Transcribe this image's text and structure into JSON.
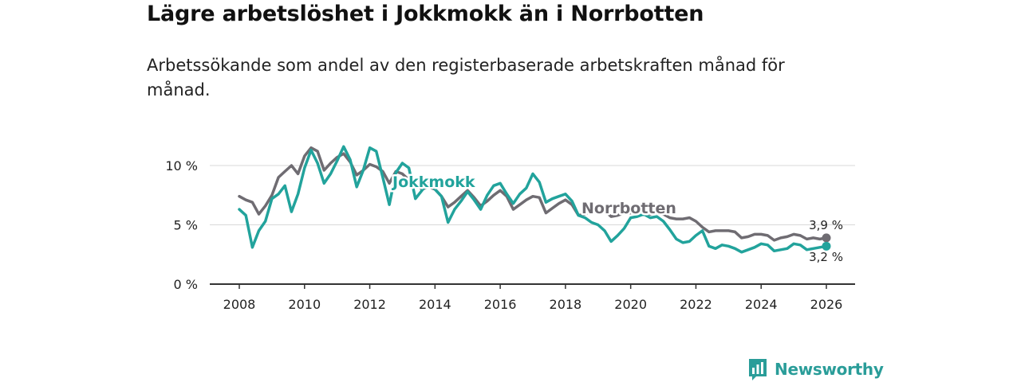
{
  "header": {
    "title": "Lägre arbetslöshet i Jokkmokk än i Norrbotten",
    "subtitle": "Arbetssökande som andel av den registerbaserade arbetskraften månad för månad."
  },
  "brand": {
    "name": "Newsworthy",
    "icon": "bar-chart-icon",
    "color": "#2a9d99"
  },
  "chart_data": {
    "type": "line",
    "title": "Lägre arbetslöshet i Jokkmokk än i Norrbotten",
    "xlabel": "",
    "ylabel": "",
    "xlim": [
      2007.4,
      2026.9
    ],
    "ylim": [
      0,
      12
    ],
    "x_ticks": [
      2008,
      2010,
      2012,
      2014,
      2016,
      2018,
      2020,
      2022,
      2024,
      2026
    ],
    "x_tick_labels": [
      "2008",
      "2010",
      "2012",
      "2014",
      "2016",
      "2018",
      "2020",
      "2022",
      "2024",
      "2026"
    ],
    "y_ticks": [
      0,
      5,
      10
    ],
    "y_tick_labels": [
      "0 %",
      "5 %",
      "10 %"
    ],
    "grid": "horizontal",
    "series": [
      {
        "name": "Norrbotten",
        "label": "Norrbotten",
        "color": "#6f6c72",
        "end_label": "3,9 %",
        "points": [
          [
            2008.0,
            7.4
          ],
          [
            2008.2,
            7.1
          ],
          [
            2008.4,
            6.9
          ],
          [
            2008.6,
            5.9
          ],
          [
            2008.8,
            6.6
          ],
          [
            2009.0,
            7.5
          ],
          [
            2009.2,
            9.0
          ],
          [
            2009.4,
            9.5
          ],
          [
            2009.6,
            10.0
          ],
          [
            2009.8,
            9.3
          ],
          [
            2010.0,
            10.8
          ],
          [
            2010.2,
            11.5
          ],
          [
            2010.4,
            11.2
          ],
          [
            2010.6,
            9.6
          ],
          [
            2010.8,
            10.2
          ],
          [
            2011.0,
            10.7
          ],
          [
            2011.2,
            11.0
          ],
          [
            2011.4,
            10.3
          ],
          [
            2011.6,
            9.2
          ],
          [
            2011.8,
            9.6
          ],
          [
            2012.0,
            10.1
          ],
          [
            2012.2,
            9.9
          ],
          [
            2012.4,
            9.5
          ],
          [
            2012.6,
            8.5
          ],
          [
            2012.8,
            9.5
          ],
          [
            2013.0,
            9.3
          ],
          [
            2013.2,
            8.8
          ],
          [
            2013.4,
            8.4
          ],
          [
            2013.6,
            8.0
          ],
          [
            2013.8,
            8.2
          ],
          [
            2014.0,
            8.0
          ],
          [
            2014.2,
            7.4
          ],
          [
            2014.4,
            6.5
          ],
          [
            2014.6,
            6.9
          ],
          [
            2014.8,
            7.4
          ],
          [
            2015.0,
            7.9
          ],
          [
            2015.2,
            7.3
          ],
          [
            2015.4,
            6.6
          ],
          [
            2015.6,
            7.0
          ],
          [
            2015.8,
            7.5
          ],
          [
            2016.0,
            7.9
          ],
          [
            2016.2,
            7.4
          ],
          [
            2016.4,
            6.3
          ],
          [
            2016.6,
            6.7
          ],
          [
            2016.8,
            7.1
          ],
          [
            2017.0,
            7.4
          ],
          [
            2017.2,
            7.3
          ],
          [
            2017.4,
            6.0
          ],
          [
            2017.6,
            6.4
          ],
          [
            2017.8,
            6.8
          ],
          [
            2018.0,
            7.1
          ],
          [
            2018.2,
            6.7
          ],
          [
            2018.4,
            5.8
          ],
          [
            2018.6,
            5.9
          ],
          [
            2018.8,
            6.2
          ],
          [
            2019.0,
            6.4
          ],
          [
            2019.2,
            6.2
          ],
          [
            2019.4,
            5.7
          ],
          [
            2019.6,
            5.8
          ],
          [
            2019.8,
            6.0
          ],
          [
            2020.0,
            6.0
          ],
          [
            2020.2,
            6.3
          ],
          [
            2020.4,
            6.0
          ],
          [
            2020.6,
            5.9
          ],
          [
            2020.8,
            6.0
          ],
          [
            2021.0,
            5.9
          ],
          [
            2021.2,
            5.6
          ],
          [
            2021.4,
            5.5
          ],
          [
            2021.6,
            5.5
          ],
          [
            2021.8,
            5.6
          ],
          [
            2022.0,
            5.3
          ],
          [
            2022.2,
            4.8
          ],
          [
            2022.4,
            4.4
          ],
          [
            2022.6,
            4.5
          ],
          [
            2022.8,
            4.5
          ],
          [
            2023.0,
            4.5
          ],
          [
            2023.2,
            4.4
          ],
          [
            2023.4,
            3.9
          ],
          [
            2023.6,
            4.0
          ],
          [
            2023.8,
            4.2
          ],
          [
            2024.0,
            4.2
          ],
          [
            2024.2,
            4.1
          ],
          [
            2024.4,
            3.7
          ],
          [
            2024.6,
            3.9
          ],
          [
            2024.8,
            4.0
          ],
          [
            2025.0,
            4.2
          ],
          [
            2025.2,
            4.1
          ],
          [
            2025.4,
            3.8
          ],
          [
            2025.6,
            3.9
          ],
          [
            2025.8,
            3.8
          ],
          [
            2026.0,
            3.9
          ]
        ]
      },
      {
        "name": "Jokkmokk",
        "label": "Jokkmokk",
        "color": "#22a39c",
        "end_label": "3,2 %",
        "points": [
          [
            2008.0,
            6.3
          ],
          [
            2008.2,
            5.8
          ],
          [
            2008.4,
            3.1
          ],
          [
            2008.6,
            4.5
          ],
          [
            2008.8,
            5.3
          ],
          [
            2009.0,
            7.2
          ],
          [
            2009.2,
            7.6
          ],
          [
            2009.4,
            8.3
          ],
          [
            2009.6,
            6.1
          ],
          [
            2009.8,
            7.6
          ],
          [
            2010.0,
            9.8
          ],
          [
            2010.2,
            11.3
          ],
          [
            2010.4,
            10.2
          ],
          [
            2010.6,
            8.5
          ],
          [
            2010.8,
            9.3
          ],
          [
            2011.0,
            10.4
          ],
          [
            2011.2,
            11.6
          ],
          [
            2011.4,
            10.5
          ],
          [
            2011.6,
            8.2
          ],
          [
            2011.8,
            9.6
          ],
          [
            2012.0,
            11.5
          ],
          [
            2012.2,
            11.2
          ],
          [
            2012.4,
            9.0
          ],
          [
            2012.6,
            6.7
          ],
          [
            2012.8,
            9.4
          ],
          [
            2013.0,
            10.2
          ],
          [
            2013.2,
            9.8
          ],
          [
            2013.4,
            7.2
          ],
          [
            2013.6,
            7.9
          ],
          [
            2013.8,
            8.6
          ],
          [
            2014.0,
            8.0
          ],
          [
            2014.2,
            7.4
          ],
          [
            2014.4,
            5.2
          ],
          [
            2014.6,
            6.3
          ],
          [
            2014.8,
            7.0
          ],
          [
            2015.0,
            7.8
          ],
          [
            2015.2,
            7.1
          ],
          [
            2015.4,
            6.3
          ],
          [
            2015.6,
            7.5
          ],
          [
            2015.8,
            8.3
          ],
          [
            2016.0,
            8.5
          ],
          [
            2016.2,
            7.6
          ],
          [
            2016.4,
            6.8
          ],
          [
            2016.6,
            7.6
          ],
          [
            2016.8,
            8.1
          ],
          [
            2017.0,
            9.3
          ],
          [
            2017.2,
            8.6
          ],
          [
            2017.4,
            6.9
          ],
          [
            2017.6,
            7.2
          ],
          [
            2017.8,
            7.4
          ],
          [
            2018.0,
            7.6
          ],
          [
            2018.2,
            7.0
          ],
          [
            2018.4,
            5.8
          ],
          [
            2018.6,
            5.6
          ],
          [
            2018.8,
            5.2
          ],
          [
            2019.0,
            5.0
          ],
          [
            2019.2,
            4.5
          ],
          [
            2019.4,
            3.6
          ],
          [
            2019.6,
            4.1
          ],
          [
            2019.8,
            4.7
          ],
          [
            2020.0,
            5.6
          ],
          [
            2020.2,
            5.7
          ],
          [
            2020.4,
            5.9
          ],
          [
            2020.6,
            5.6
          ],
          [
            2020.8,
            5.7
          ],
          [
            2021.0,
            5.3
          ],
          [
            2021.2,
            4.6
          ],
          [
            2021.4,
            3.8
          ],
          [
            2021.6,
            3.5
          ],
          [
            2021.8,
            3.6
          ],
          [
            2022.0,
            4.1
          ],
          [
            2022.2,
            4.5
          ],
          [
            2022.4,
            3.2
          ],
          [
            2022.6,
            3.0
          ],
          [
            2022.8,
            3.3
          ],
          [
            2023.0,
            3.2
          ],
          [
            2023.2,
            3.0
          ],
          [
            2023.4,
            2.7
          ],
          [
            2023.6,
            2.9
          ],
          [
            2023.8,
            3.1
          ],
          [
            2024.0,
            3.4
          ],
          [
            2024.2,
            3.3
          ],
          [
            2024.4,
            2.8
          ],
          [
            2024.6,
            2.9
          ],
          [
            2024.8,
            3.0
          ],
          [
            2025.0,
            3.4
          ],
          [
            2025.2,
            3.3
          ],
          [
            2025.4,
            2.9
          ],
          [
            2025.6,
            3.0
          ],
          [
            2025.8,
            3.1
          ],
          [
            2026.0,
            3.2
          ]
        ]
      }
    ]
  }
}
